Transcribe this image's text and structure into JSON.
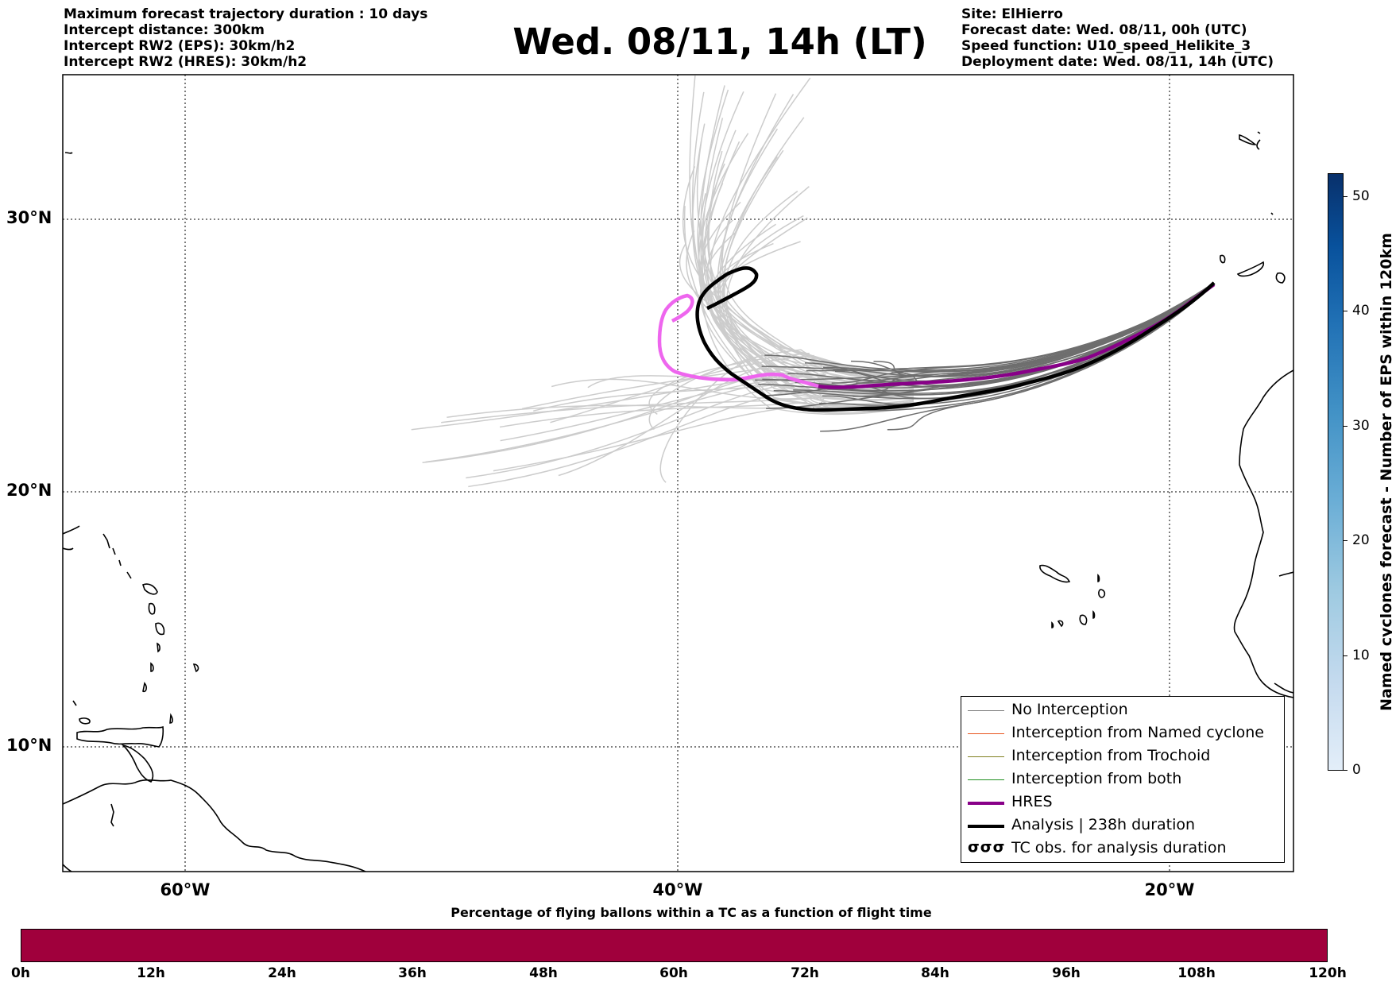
{
  "info_left": [
    "Maximum forecast trajectory duration : 10 days",
    "Intercept distance: 300km",
    "Intercept RW2 (EPS):  30km/h2",
    "Intercept RW2 (HRES): 30km/h2"
  ],
  "info_right": [
    "Site: ElHierro",
    "Forecast date: Wed. 08/11, 00h (UTC)",
    "Speed function: U10_speed_Helikite_3",
    "Deployment date: Wed. 08/11, 14h (UTC)"
  ],
  "title": "Wed. 08/11, 14h (LT)",
  "map": {
    "lon_range": [
      -65,
      -15
    ],
    "lat_range": [
      5,
      34.3
    ],
    "lat_labels": [
      "30°N",
      "20°N",
      "10°N"
    ],
    "lon_labels": [
      "60°W",
      "40°W",
      "20°W"
    ],
    "grid": true
  },
  "legend": {
    "items": [
      {
        "label": "No Interception",
        "color": "#777777",
        "style": "thin"
      },
      {
        "label": "Interception from Named cyclone",
        "color": "#e8541e",
        "style": "thin"
      },
      {
        "label": "Interception from Trochoid",
        "color": "#808020",
        "style": "thin"
      },
      {
        "label": "Interception from both",
        "color": "#1f8f1f",
        "style": "thin"
      },
      {
        "label": "HRES",
        "color": "#880088",
        "style": "thick"
      },
      {
        "label": "Analysis | 238h duration",
        "color": "#000000",
        "style": "thick"
      },
      {
        "label": "TC obs. for analysis duration",
        "color": "#000000",
        "style": "glyph",
        "glyph": "σσσ"
      }
    ]
  },
  "colorbar_vertical": {
    "label": "Named cyclones forecast - Number of EPS within 120km",
    "ticks": [
      "0",
      "10",
      "20",
      "30",
      "40",
      "50"
    ],
    "range": [
      0,
      52
    ]
  },
  "colorbar_horizontal": {
    "title": "Percentage of flying ballons within a TC as a function of flight time",
    "ticks": [
      "0h",
      "12h",
      "24h",
      "36h",
      "48h",
      "60h",
      "72h",
      "84h",
      "96h",
      "108h",
      "120h"
    ],
    "color": "#a0003c"
  }
}
